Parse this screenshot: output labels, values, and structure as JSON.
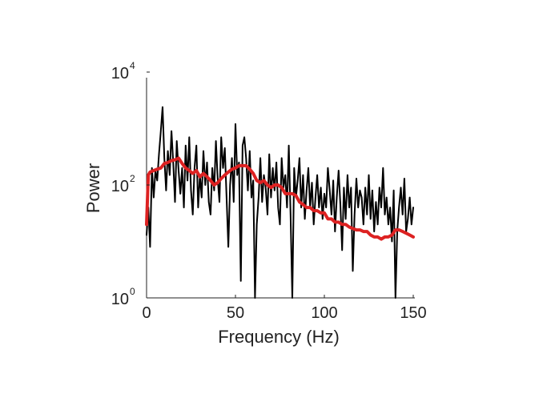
{
  "chart_data": {
    "type": "line",
    "xlabel": "Frequency (Hz)",
    "ylabel": "Power",
    "xlim": [
      0,
      150
    ],
    "ylim": [
      1,
      10000
    ],
    "yscale": "log",
    "xticks": [
      {
        "value": 0,
        "label": "0"
      },
      {
        "value": 50,
        "label": "50"
      },
      {
        "value": 100,
        "label": "100"
      },
      {
        "value": 150,
        "label": "150"
      }
    ],
    "yticks": [
      {
        "value": 1,
        "base": "10",
        "exp": "0"
      },
      {
        "value": 100,
        "base": "10",
        "exp": "2"
      },
      {
        "value": 10000,
        "base": "10",
        "exp": "4"
      }
    ],
    "grid": false,
    "series": [
      {
        "color": "#000000",
        "x": [
          0,
          1,
          2,
          3,
          4,
          5,
          6,
          7,
          8,
          9,
          10,
          11,
          12,
          13,
          14,
          15,
          16,
          17,
          18,
          19,
          20,
          21,
          22,
          23,
          24,
          25,
          26,
          27,
          28,
          29,
          30,
          31,
          32,
          33,
          34,
          35,
          36,
          37,
          38,
          39,
          40,
          41,
          42,
          43,
          44,
          45,
          46,
          47,
          48,
          49,
          50,
          51,
          52,
          53,
          54,
          55,
          56,
          57,
          58,
          59,
          60,
          61,
          62,
          63,
          64,
          65,
          66,
          67,
          68,
          69,
          70,
          71,
          72,
          73,
          74,
          75,
          76,
          77,
          78,
          79,
          80,
          81,
          82,
          83,
          84,
          85,
          86,
          87,
          88,
          89,
          90,
          91,
          92,
          93,
          94,
          95,
          96,
          97,
          98,
          99,
          100,
          101,
          102,
          103,
          104,
          105,
          106,
          107,
          108,
          109,
          110,
          111,
          112,
          113,
          114,
          115,
          116,
          117,
          118,
          119,
          120,
          121,
          122,
          123,
          124,
          125,
          126,
          127,
          128,
          129,
          130,
          131,
          132,
          133,
          134,
          135,
          136,
          137,
          138,
          139,
          140,
          141,
          142,
          143,
          144,
          145,
          146,
          147,
          148,
          149,
          150
        ],
        "values": [
          13,
          40,
          8,
          200,
          60,
          180,
          120,
          350,
          900,
          2400,
          300,
          80,
          400,
          150,
          900,
          250,
          50,
          600,
          180,
          70,
          200,
          40,
          500,
          120,
          700,
          80,
          30,
          200,
          500,
          40,
          150,
          60,
          400,
          100,
          250,
          50,
          30,
          200,
          80,
          600,
          130,
          50,
          700,
          200,
          450,
          60,
          8,
          100,
          300,
          50,
          1200,
          150,
          250,
          2,
          500,
          700,
          300,
          80,
          400,
          60,
          120,
          1,
          20,
          60,
          300,
          50,
          150,
          90,
          30,
          350,
          60,
          200,
          80,
          250,
          40,
          20,
          300,
          90,
          150,
          40,
          500,
          30,
          1,
          200,
          60,
          120,
          300,
          40,
          150,
          25,
          80,
          200,
          40,
          110,
          20,
          60,
          150,
          40,
          90,
          25,
          70,
          40,
          200,
          80,
          30,
          120,
          15,
          60,
          180,
          45,
          7,
          90,
          25,
          150,
          40,
          90,
          3,
          30,
          130,
          40,
          80,
          60,
          20,
          90,
          30,
          150,
          25,
          80,
          15,
          50,
          20,
          90,
          40,
          200,
          30,
          60,
          20,
          40,
          10,
          80,
          1,
          15,
          40,
          90,
          30,
          130,
          15,
          25,
          60,
          20,
          40
        ]
      },
      {
        "color": "#dd2222",
        "x": [
          0,
          1,
          2,
          4,
          6,
          8,
          10,
          12,
          14,
          16,
          18,
          20,
          22,
          24,
          26,
          28,
          30,
          32,
          34,
          36,
          38,
          40,
          42,
          44,
          46,
          48,
          50,
          52,
          54,
          56,
          58,
          60,
          62,
          64,
          66,
          68,
          70,
          72,
          74,
          76,
          78,
          80,
          82,
          84,
          86,
          88,
          90,
          92,
          94,
          96,
          98,
          100,
          102,
          104,
          106,
          108,
          110,
          112,
          114,
          116,
          118,
          120,
          122,
          124,
          126,
          128,
          130,
          132,
          134,
          136,
          138,
          140,
          142,
          144,
          146,
          148,
          150
        ],
        "values": [
          20,
          150,
          170,
          180,
          190,
          200,
          240,
          250,
          270,
          280,
          300,
          240,
          200,
          180,
          160,
          180,
          140,
          160,
          140,
          120,
          100,
          110,
          130,
          150,
          170,
          190,
          200,
          220,
          220,
          220,
          190,
          160,
          120,
          110,
          120,
          100,
          90,
          100,
          100,
          90,
          70,
          70,
          70,
          65,
          50,
          45,
          40,
          40,
          35,
          35,
          32,
          32,
          25,
          25,
          22,
          22,
          20,
          20,
          18,
          17,
          16,
          16,
          15,
          15,
          13,
          12,
          12,
          11,
          12,
          12,
          13,
          16,
          16,
          15,
          14,
          13,
          12
        ]
      }
    ]
  }
}
